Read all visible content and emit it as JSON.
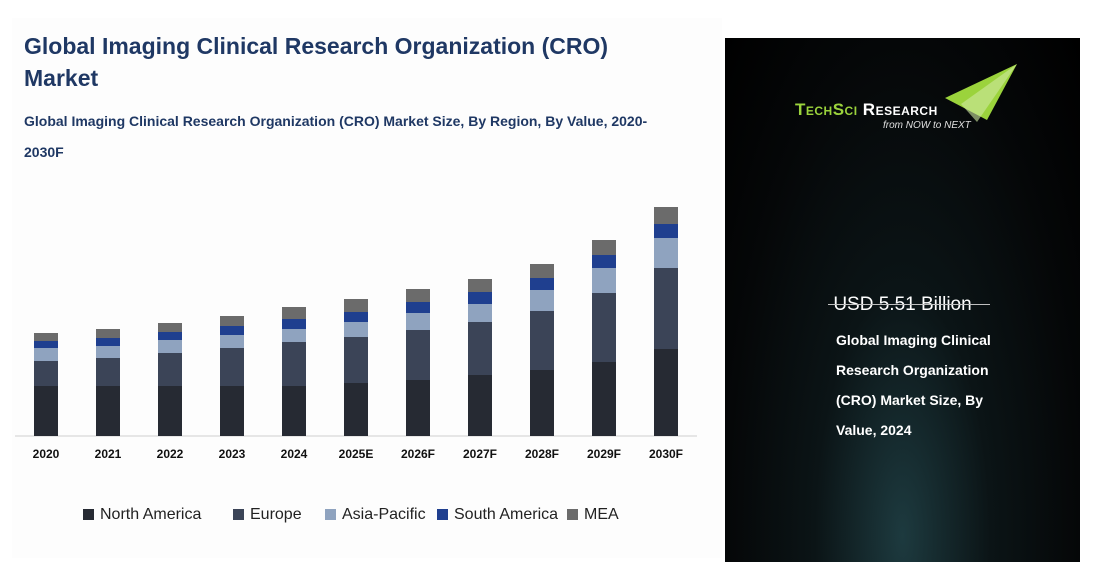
{
  "chart_data": {
    "type": "stacked_bar",
    "title": "Global Imaging Clinical Research Organization (CRO) Market",
    "subtitle": "Global Imaging Clinical Research Organization (CRO) Market Size, By Region, By Value, 2020-2030F",
    "categories": [
      "2020",
      "2021",
      "2022",
      "2023",
      "2024",
      "2025E",
      "2026F",
      "2027F",
      "2028F",
      "2029F",
      "2030F"
    ],
    "series": [
      {
        "name": "North America",
        "color": "#262a33",
        "values": [
          50,
          50,
          50,
          50,
          50,
          53,
          56,
          61,
          66,
          74,
          87
        ]
      },
      {
        "name": "Europe",
        "color": "#3b4457",
        "values": [
          25,
          28,
          33,
          38,
          44,
          46,
          50,
          53,
          59,
          69,
          81
        ]
      },
      {
        "name": "Asia-Pacific",
        "color": "#8fa3bf",
        "values": [
          13,
          12,
          13,
          13,
          13,
          15,
          17,
          18,
          21,
          25,
          30
        ]
      },
      {
        "name": "South America",
        "color": "#1f3f8f",
        "values": [
          7,
          8,
          8,
          9,
          10,
          10,
          11,
          12,
          12,
          13,
          14
        ]
      },
      {
        "name": "MEA",
        "color": "#6b6b6b",
        "values": [
          8,
          9,
          9,
          10,
          12,
          13,
          13,
          13,
          14,
          15,
          17
        ]
      }
    ],
    "ylim": [
      0,
      250
    ]
  },
  "panel": {
    "brand_a": "TechSci",
    "brand_b": "Research",
    "tagline": "from NOW to NEXT",
    "value": "USD 5.51 Billion",
    "description": "Global Imaging Clinical Research Organization (CRO) Market Size, By Value, 2024"
  }
}
